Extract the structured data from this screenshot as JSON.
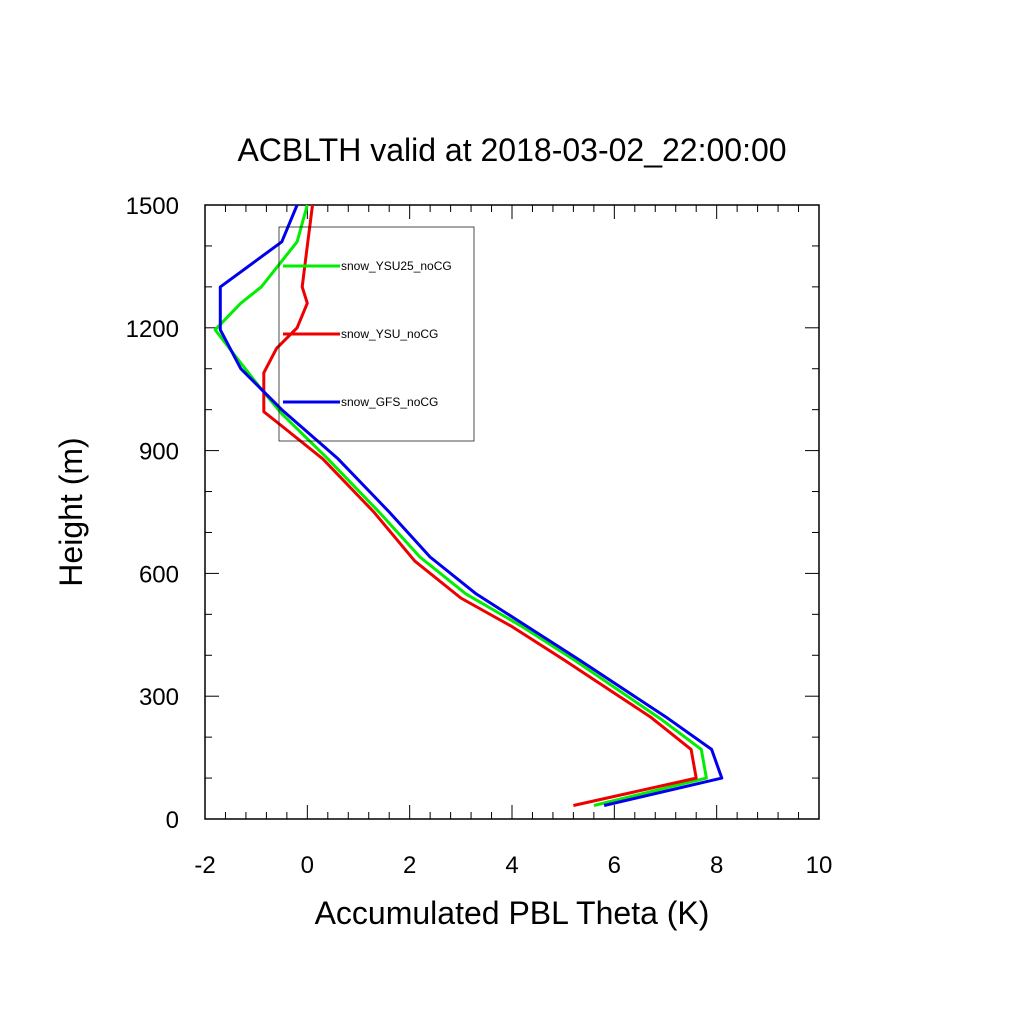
{
  "chart_data": {
    "type": "line",
    "title": "ACBLTH valid at 2018-03-02_22:00:00",
    "xlabel": "Accumulated PBL Theta (K)",
    "ylabel": "Height (m)",
    "xlim": [
      -2,
      10
    ],
    "ylim": [
      0,
      1500
    ],
    "xticks": [
      -2,
      0,
      2,
      4,
      6,
      8,
      10
    ],
    "yticks": [
      0,
      300,
      600,
      900,
      1200,
      1500
    ],
    "grid": false,
    "legend_position": "top-left",
    "series": [
      {
        "name": "snow_YSU25_noCG",
        "color": "#00ee00",
        "points": [
          [
            5.6,
            33
          ],
          [
            7.8,
            100
          ],
          [
            7.7,
            170
          ],
          [
            6.9,
            245
          ],
          [
            5.2,
            390
          ],
          [
            4.2,
            470
          ],
          [
            3.1,
            550
          ],
          [
            2.2,
            640
          ],
          [
            1.4,
            750
          ],
          [
            0.4,
            880
          ],
          [
            -0.5,
            990
          ],
          [
            -0.9,
            1050
          ],
          [
            -1.4,
            1130
          ],
          [
            -1.8,
            1195
          ],
          [
            -1.3,
            1260
          ],
          [
            -0.9,
            1300
          ],
          [
            -0.2,
            1410
          ],
          [
            0.0,
            1500
          ]
        ]
      },
      {
        "name": "snow_YSU_noCG",
        "color": "#ee0000",
        "points": [
          [
            5.2,
            33
          ],
          [
            7.6,
            100
          ],
          [
            7.5,
            170
          ],
          [
            6.7,
            250
          ],
          [
            5.0,
            390
          ],
          [
            4.0,
            470
          ],
          [
            3.0,
            540
          ],
          [
            2.1,
            630
          ],
          [
            1.3,
            750
          ],
          [
            0.3,
            880
          ],
          [
            -0.5,
            960
          ],
          [
            -0.85,
            995
          ],
          [
            -0.85,
            1040
          ],
          [
            -0.85,
            1090
          ],
          [
            -0.6,
            1150
          ],
          [
            -0.2,
            1200
          ],
          [
            0.0,
            1260
          ],
          [
            -0.1,
            1300
          ],
          [
            0.0,
            1400
          ],
          [
            0.1,
            1500
          ]
        ]
      },
      {
        "name": "snow_GFS_noCG",
        "color": "#0000ee",
        "points": [
          [
            5.8,
            33
          ],
          [
            8.1,
            100
          ],
          [
            7.9,
            170
          ],
          [
            7.0,
            250
          ],
          [
            5.3,
            390
          ],
          [
            4.3,
            470
          ],
          [
            3.3,
            550
          ],
          [
            2.4,
            640
          ],
          [
            1.6,
            750
          ],
          [
            0.6,
            880
          ],
          [
            -0.5,
            1000
          ],
          [
            -1.3,
            1100
          ],
          [
            -1.7,
            1195
          ],
          [
            -1.7,
            1300
          ],
          [
            -0.5,
            1410
          ],
          [
            -0.2,
            1500
          ]
        ]
      }
    ]
  }
}
